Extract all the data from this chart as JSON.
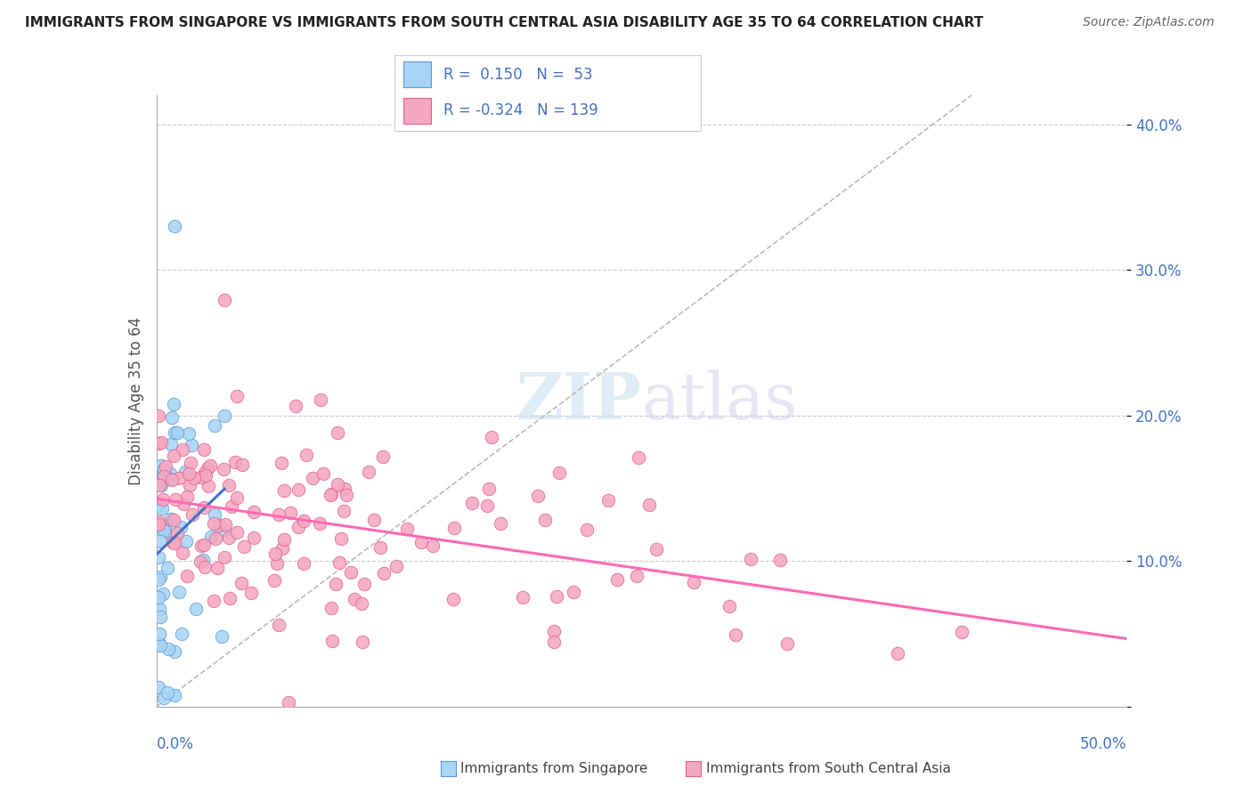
{
  "title": "IMMIGRANTS FROM SINGAPORE VS IMMIGRANTS FROM SOUTH CENTRAL ASIA DISABILITY AGE 35 TO 64 CORRELATION CHART",
  "source": "Source: ZipAtlas.com",
  "ylabel": "Disability Age 35 to 64",
  "yticks": [
    "",
    "10.0%",
    "20.0%",
    "30.0%",
    "40.0%"
  ],
  "ytick_vals": [
    0.0,
    0.1,
    0.2,
    0.3,
    0.4
  ],
  "xlim": [
    0.0,
    0.5
  ],
  "ylim": [
    0.0,
    0.42
  ],
  "color_singapore": "#A8D4F5",
  "color_southasia": "#F5A8C0",
  "color_singapore_dark": "#5B9BD5",
  "color_southasia_dark": "#E06090",
  "trend_color_singapore": "#4472C4",
  "trend_color_southasia": "#FF69B4",
  "background_color": "#FFFFFF"
}
